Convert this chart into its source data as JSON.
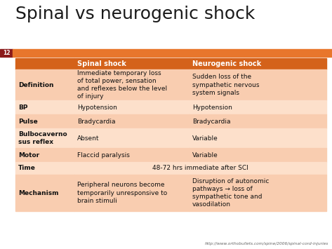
{
  "title": "Spinal vs neurogenic shock",
  "title_color": "#1a1a1a",
  "title_fontsize": 18,
  "background_color": "#ffffff",
  "slide_number": "12",
  "orange_bar_color": "#E8762C",
  "dark_red_color": "#8B1A1A",
  "header_bg_color": "#D4621A",
  "header_text_color": "#ffffff",
  "row_bg_light": "#F9CDB0",
  "row_bg_lighter": "#FDE0CB",
  "footer_text": "http://www.orthobullets.com/spine/2006/spinal-cord-injuries",
  "col1_header": "Spinal shock",
  "col2_header": "Neurogenic shock",
  "rows": [
    {
      "label": "Definition",
      "col1": "Immediate temporary loss\nof total power, sensation\nand reflexes below the level\nof injury",
      "col2": "Sudden loss of the\nsympathetic nervous\nsystem signals",
      "span": false
    },
    {
      "label": "BP",
      "col1": "Hypotension",
      "col2": "Hypotension",
      "span": false
    },
    {
      "label": "Pulse",
      "col1": "Bradycardia",
      "col2": "Bradycardia",
      "span": false
    },
    {
      "label": "Bulbocaverno\nsus reflex",
      "col1": "Absent",
      "col2": "Variable",
      "span": false
    },
    {
      "label": "Motor",
      "col1": "Flaccid paralysis",
      "col2": "Variable",
      "span": false
    },
    {
      "label": "Time",
      "col1": "48-72 hrs immediate after SCI",
      "col2": "",
      "span": true
    },
    {
      "label": "Mechanism",
      "col1": "Peripheral neurons become\ntemporarily unresponsive to\nbrain stimuli",
      "col2": "Disruption of autonomic\npathways → loss of\nsympathetic tone and\nvasodilation",
      "span": false
    }
  ]
}
